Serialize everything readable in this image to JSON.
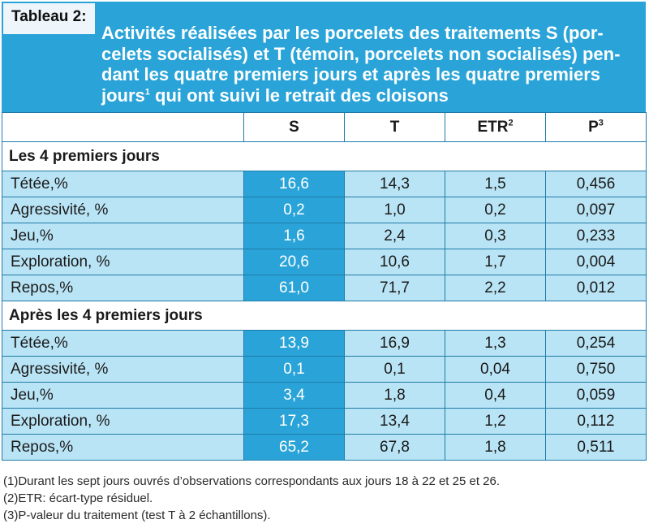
{
  "tag": "Tableau 2:",
  "title_lines": [
    "Activités réalisées par les porcelets des traitements S (por-",
    "celets socialisés) et T (témoin, porcelets non socialisés) pen-",
    "dant les quatre premiers jours et après les quatre premiers",
    "jours"
  ],
  "title_sup": "1",
  "title_end": " qui ont suivi le retrait des cloisons",
  "columns": [
    {
      "label": "S",
      "sup": ""
    },
    {
      "label": "T",
      "sup": ""
    },
    {
      "label": "ETR",
      "sup": "2"
    },
    {
      "label": "P",
      "sup": "3"
    }
  ],
  "sections": [
    {
      "title": "Les 4 premiers jours",
      "rows": [
        {
          "label": "Tétée,%",
          "values": [
            "16,6",
            "14,3",
            "1,5",
            "0,456"
          ]
        },
        {
          "label": "Agressivité, %",
          "values": [
            "0,2",
            "1,0",
            "0,2",
            "0,097"
          ]
        },
        {
          "label": "Jeu,%",
          "values": [
            "1,6",
            "2,4",
            "0,3",
            "0,233"
          ]
        },
        {
          "label": "Exploration, %",
          "values": [
            "20,6",
            "10,6",
            "1,7",
            "0,004"
          ]
        },
        {
          "label": "Repos,%",
          "values": [
            "61,0",
            "71,7",
            "2,2",
            "0,012"
          ]
        }
      ]
    },
    {
      "title": "Après les 4 premiers jours",
      "rows": [
        {
          "label": "Tétée,%",
          "values": [
            "13,9",
            "16,9",
            "1,3",
            "0,254"
          ]
        },
        {
          "label": "Agressivité, %",
          "values": [
            "0,1",
            "0,1",
            "0,04",
            "0,750"
          ]
        },
        {
          "label": "Jeu,%",
          "values": [
            "3,4",
            "1,8",
            "0,4",
            "0,059"
          ]
        },
        {
          "label": "Exploration, %",
          "values": [
            "17,3",
            "13,4",
            "1,2",
            "0,112"
          ]
        },
        {
          "label": "Repos,%",
          "values": [
            "65,2",
            "67,8",
            "1,8",
            "0,511"
          ]
        }
      ]
    }
  ],
  "notes": [
    "(1)Durant les sept jours ouvrés d’observations correspondants aux jours 18 à 22 et 25 et 26.",
    "(2)ETR: écart-type résiduel.",
    "(3)P-valeur du traitement (test T à 2 échantillons)."
  ],
  "colors": {
    "header_blue": "#2aa4d8",
    "cell_light_blue": "#b9e4f5",
    "border_blue": "#1e7ba8"
  }
}
